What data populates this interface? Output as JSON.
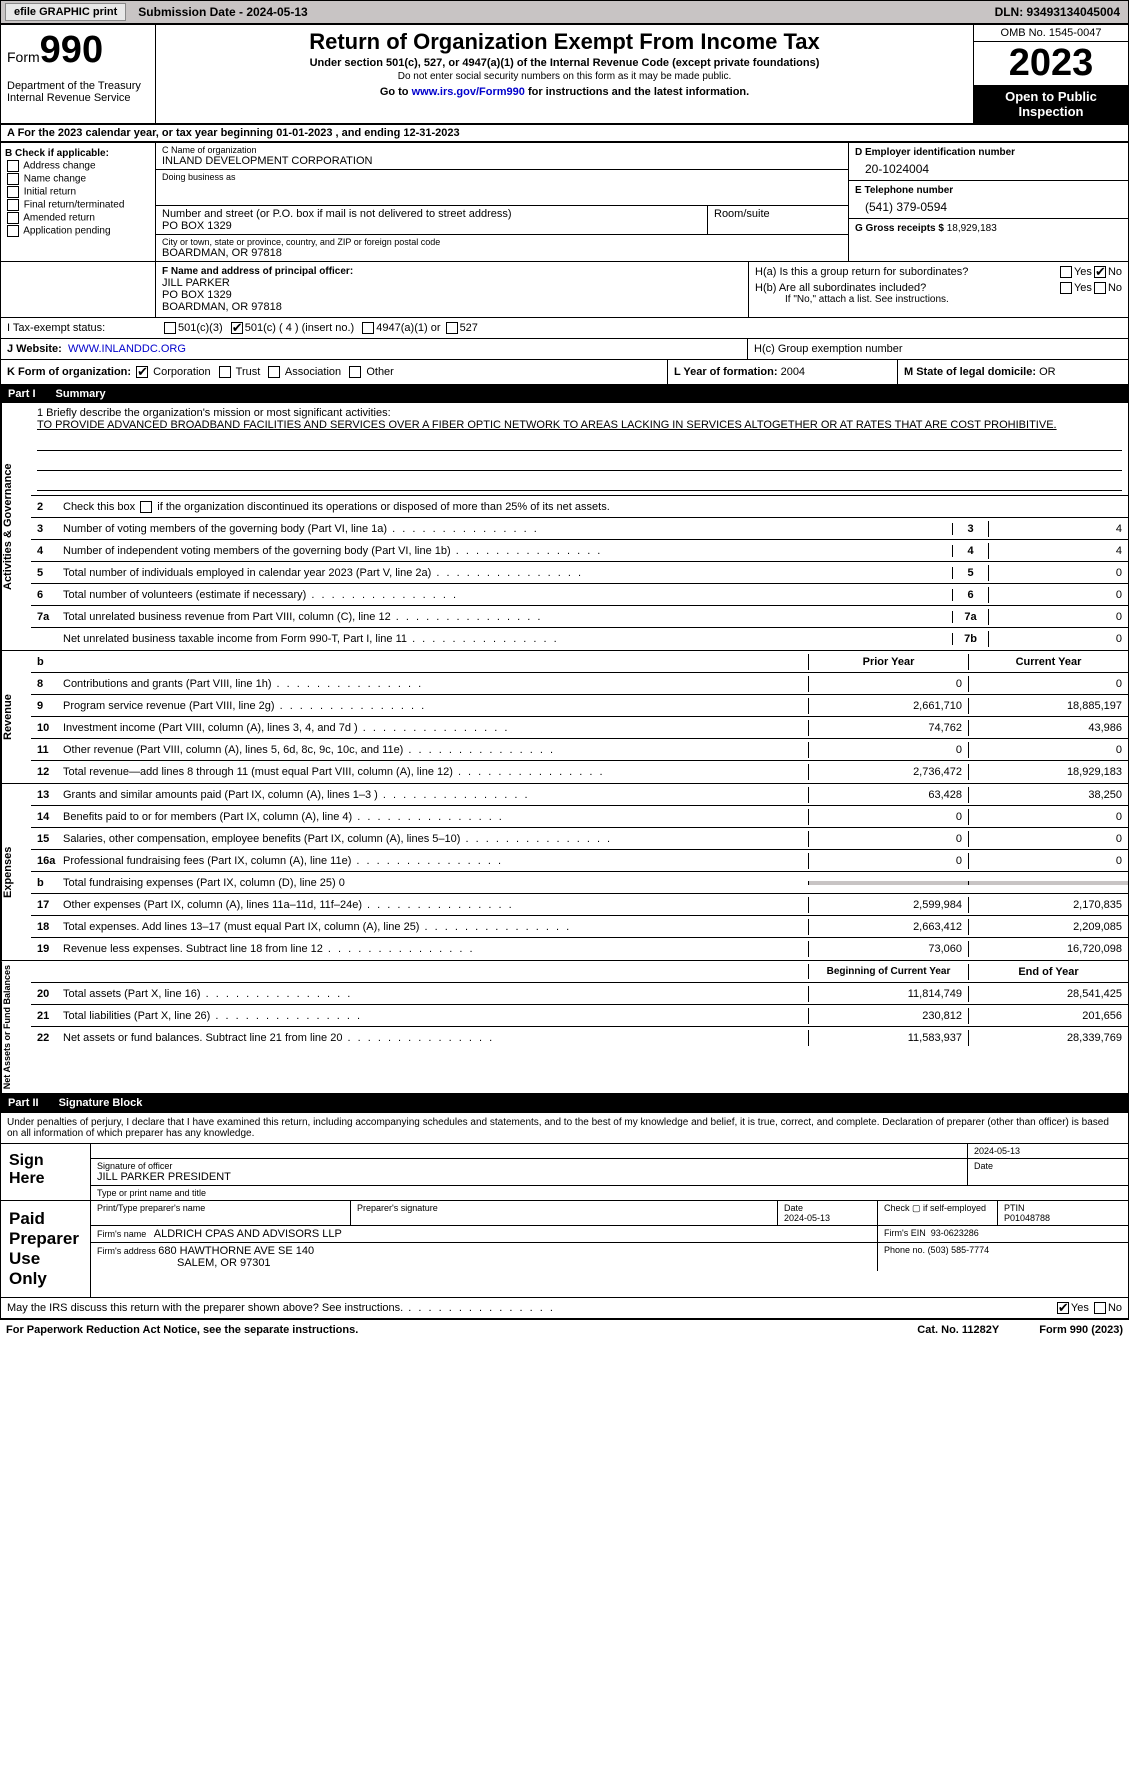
{
  "topbar": {
    "efile_label": "efile GRAPHIC print",
    "submission_label": "Submission Date - 2024-05-13",
    "dln_label": "DLN: 93493134045004"
  },
  "header": {
    "form_word": "Form",
    "form_number": "990",
    "dept": "Department of the Treasury\nInternal Revenue Service",
    "title": "Return of Organization Exempt From Income Tax",
    "subtitle": "Under section 501(c), 527, or 4947(a)(1) of the Internal Revenue Code (except private foundations)",
    "note": "Do not enter social security numbers on this form as it may be made public.",
    "goto": "Go to www.irs.gov/Form990 for instructions and the latest information.",
    "irs_url": "www.irs.gov/Form990",
    "omb": "OMB No. 1545-0047",
    "year": "2023",
    "open": "Open to Public Inspection"
  },
  "lineA": "A For the 2023 calendar year, or tax year beginning 01-01-2023   , and ending 12-31-2023",
  "boxB": {
    "title": "B Check if applicable:",
    "items": [
      "Address change",
      "Name change",
      "Initial return",
      "Final return/terminated",
      "Amended return",
      "Application pending"
    ]
  },
  "boxC": {
    "name_lbl": "C Name of organization",
    "name_val": "INLAND DEVELOPMENT CORPORATION",
    "dba_lbl": "Doing business as",
    "dba_val": "",
    "street_lbl": "Number and street (or P.O. box if mail is not delivered to street address)",
    "street_val": "PO BOX 1329",
    "room_lbl": "Room/suite",
    "room_val": "",
    "city_lbl": "City or town, state or province, country, and ZIP or foreign postal code",
    "city_val": "BOARDMAN, OR  97818"
  },
  "boxD": {
    "ein_lbl": "D Employer identification number",
    "ein_val": "20-1024004",
    "tel_lbl": "E Telephone number",
    "tel_val": "(541) 379-0594",
    "gross_lbl": "G Gross receipts $",
    "gross_val": "18,929,183"
  },
  "boxF": {
    "lbl": "F  Name and address of principal officer:",
    "name": "JILL PARKER",
    "street": "PO BOX 1329",
    "city": "BOARDMAN, OR  97818"
  },
  "boxH": {
    "a": "H(a)  Is this a group return for subordinates?",
    "b": "H(b)  Are all subordinates included?",
    "b_note": "If \"No,\" attach a list. See instructions.",
    "c": "H(c)  Group exemption number",
    "yes": "Yes",
    "no": "No"
  },
  "boxI": {
    "lbl": "I   Tax-exempt status:",
    "opt1": "501(c)(3)",
    "opt2": "501(c) ( 4 ) (insert no.)",
    "opt3": "4947(a)(1) or",
    "opt4": "527"
  },
  "boxJ": {
    "lbl": "J   Website:",
    "val": "WWW.INLANDDC.ORG"
  },
  "boxK": {
    "lbl": "K Form of organization:",
    "opts": [
      "Corporation",
      "Trust",
      "Association",
      "Other"
    ]
  },
  "boxL": {
    "lbl": "L Year of formation:",
    "val": "2004"
  },
  "boxM": {
    "lbl": "M State of legal domicile:",
    "val": "OR"
  },
  "part1": {
    "num": "Part I",
    "title": "Summary"
  },
  "mission": {
    "q": "1  Briefly describe the organization's mission or most significant activities:",
    "text": "TO PROVIDE ADVANCED BROADBAND FACILITIES AND SERVICES OVER A FIBER OPTIC NETWORK TO AREAS LACKING IN SERVICES ALTOGETHER OR AT RATES THAT ARE COST PROHIBITIVE."
  },
  "line2": "2   Check this box ▢ if the organization discontinued its operations or disposed of more than 25% of its net assets.",
  "sidetabs": {
    "ag": "Activities & Governance",
    "rev": "Revenue",
    "exp": "Expenses",
    "na": "Net Assets or Fund Balances"
  },
  "govRows": [
    {
      "n": "3",
      "t": "Number of voting members of the governing body (Part VI, line 1a)",
      "cn": "3",
      "v": "4"
    },
    {
      "n": "4",
      "t": "Number of independent voting members of the governing body (Part VI, line 1b)",
      "cn": "4",
      "v": "4"
    },
    {
      "n": "5",
      "t": "Total number of individuals employed in calendar year 2023 (Part V, line 2a)",
      "cn": "5",
      "v": "0"
    },
    {
      "n": "6",
      "t": "Total number of volunteers (estimate if necessary)",
      "cn": "6",
      "v": "0"
    },
    {
      "n": "7a",
      "t": "Total unrelated business revenue from Part VIII, column (C), line 12",
      "cn": "7a",
      "v": "0"
    },
    {
      "n": "",
      "t": "Net unrelated business taxable income from Form 990-T, Part I, line 11",
      "cn": "7b",
      "v": "0"
    }
  ],
  "yearHdr": {
    "b": "b",
    "prior": "Prior Year",
    "curr": "Current Year"
  },
  "revRows": [
    {
      "n": "8",
      "t": "Contributions and grants (Part VIII, line 1h)",
      "p": "0",
      "c": "0"
    },
    {
      "n": "9",
      "t": "Program service revenue (Part VIII, line 2g)",
      "p": "2,661,710",
      "c": "18,885,197"
    },
    {
      "n": "10",
      "t": "Investment income (Part VIII, column (A), lines 3, 4, and 7d )",
      "p": "74,762",
      "c": "43,986"
    },
    {
      "n": "11",
      "t": "Other revenue (Part VIII, column (A), lines 5, 6d, 8c, 9c, 10c, and 11e)",
      "p": "0",
      "c": "0"
    },
    {
      "n": "12",
      "t": "Total revenue—add lines 8 through 11 (must equal Part VIII, column (A), line 12)",
      "p": "2,736,472",
      "c": "18,929,183"
    }
  ],
  "expRows": [
    {
      "n": "13",
      "t": "Grants and similar amounts paid (Part IX, column (A), lines 1–3 )",
      "p": "63,428",
      "c": "38,250"
    },
    {
      "n": "14",
      "t": "Benefits paid to or for members (Part IX, column (A), line 4)",
      "p": "0",
      "c": "0"
    },
    {
      "n": "15",
      "t": "Salaries, other compensation, employee benefits (Part IX, column (A), lines 5–10)",
      "p": "0",
      "c": "0"
    },
    {
      "n": "16a",
      "t": "Professional fundraising fees (Part IX, column (A), line 11e)",
      "p": "0",
      "c": "0"
    },
    {
      "n": "b",
      "t": "Total fundraising expenses (Part IX, column (D), line 25) 0",
      "p": "",
      "c": "",
      "grey": true
    },
    {
      "n": "17",
      "t": "Other expenses (Part IX, column (A), lines 11a–11d, 11f–24e)",
      "p": "2,599,984",
      "c": "2,170,835"
    },
    {
      "n": "18",
      "t": "Total expenses. Add lines 13–17 (must equal Part IX, column (A), line 25)",
      "p": "2,663,412",
      "c": "2,209,085"
    },
    {
      "n": "19",
      "t": "Revenue less expenses. Subtract line 18 from line 12",
      "p": "73,060",
      "c": "16,720,098"
    }
  ],
  "naHdr": {
    "beg": "Beginning of Current Year",
    "end": "End of Year"
  },
  "naRows": [
    {
      "n": "20",
      "t": "Total assets (Part X, line 16)",
      "p": "11,814,749",
      "c": "28,541,425"
    },
    {
      "n": "21",
      "t": "Total liabilities (Part X, line 26)",
      "p": "230,812",
      "c": "201,656"
    },
    {
      "n": "22",
      "t": "Net assets or fund balances. Subtract line 21 from line 20",
      "p": "11,583,937",
      "c": "28,339,769"
    }
  ],
  "part2": {
    "num": "Part II",
    "title": "Signature Block"
  },
  "sigIntro": "Under penalties of perjury, I declare that I have examined this return, including accompanying schedules and statements, and to the best of my knowledge and belief, it is true, correct, and complete. Declaration of preparer (other than officer) is based on all information of which preparer has any knowledge.",
  "signHere": {
    "lab": "Sign Here",
    "sig_lbl": "Signature of officer",
    "name": "JILL PARKER PRESIDENT",
    "type_lbl": "Type or print name and title",
    "date_lbl": "Date",
    "date_val": "2024-05-13"
  },
  "paidPrep": {
    "lab": "Paid Preparer Use Only",
    "print_lbl": "Print/Type preparer's name",
    "sig_lbl": "Preparer's signature",
    "date_lbl": "Date",
    "date_val": "2024-05-13",
    "check_lbl": "Check ▢ if self-employed",
    "ptin_lbl": "PTIN",
    "ptin_val": "P01048788",
    "firm_name_lbl": "Firm's name",
    "firm_name_val": "ALDRICH CPAS AND ADVISORS LLP",
    "firm_ein_lbl": "Firm's EIN",
    "firm_ein_val": "93-0623286",
    "firm_addr_lbl": "Firm's address",
    "firm_addr_val1": "680 HAWTHORNE AVE SE 140",
    "firm_addr_val2": "SALEM, OR  97301",
    "phone_lbl": "Phone no.",
    "phone_val": "(503) 585-7774"
  },
  "discuss": {
    "q": "May the IRS discuss this return with the preparer shown above? See instructions.",
    "yes": "Yes",
    "no": "No"
  },
  "footer": {
    "pra": "For Paperwork Reduction Act Notice, see the separate instructions.",
    "cat": "Cat. No. 11282Y",
    "form": "Form 990 (2023)"
  }
}
